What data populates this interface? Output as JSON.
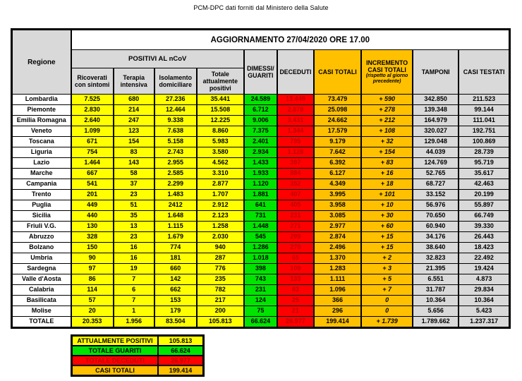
{
  "page_title": "PCM-DPC dati forniti dal Ministero della Salute",
  "colors": {
    "yellow": "#FFFF00",
    "green": "#00E400",
    "red": "#FF0000",
    "dark_red_text": "#C00000",
    "orange": "#FFC000",
    "grey": "#D9D9D9"
  },
  "table": {
    "update_header": "AGGIORNAMENTO 27/04/2020 ORE 17.00",
    "headers": {
      "regione": "Regione",
      "positivi_group": "POSITIVI AL nCoV",
      "ricoverati": "Ricoverati con sintomi",
      "terapia": "Terapia intensiva",
      "isolamento": "Isolamento domiciliare",
      "totale_positivi": "Totale attualmente positivi",
      "dimessi": "DIMESSI/ GUARITI",
      "deceduti": "DECEDUTI",
      "casi_totali": "CASI TOTALI",
      "incremento": "INCREMENTO CASI TOTALI",
      "incremento_note": "(rispetto al giorno precedente)",
      "tamponi": "TAMPONI",
      "casi_testati": "CASI TESTATI"
    },
    "rows": [
      {
        "regione": "Lombardia",
        "ricoverati": "7.525",
        "terapia": "680",
        "isolamento": "27.236",
        "totale_positivi": "35.441",
        "dimessi": "24.589",
        "deceduti": "13.449",
        "casi_totali": "73.479",
        "incremento": "+ 590",
        "tamponi": "342.850",
        "casi_testati": "211.523"
      },
      {
        "regione": "Piemonte",
        "ricoverati": "2.830",
        "terapia": "214",
        "isolamento": "12.464",
        "totale_positivi": "15.508",
        "dimessi": "6.712",
        "deceduti": "2.878",
        "casi_totali": "25.098",
        "incremento": "+ 278",
        "tamponi": "139.348",
        "casi_testati": "99.144"
      },
      {
        "regione": "Emilia Romagna",
        "ricoverati": "2.640",
        "terapia": "247",
        "isolamento": "9.338",
        "totale_positivi": "12.225",
        "dimessi": "9.006",
        "deceduti": "3.431",
        "casi_totali": "24.662",
        "incremento": "+ 212",
        "tamponi": "164.979",
        "casi_testati": "111.041"
      },
      {
        "regione": "Veneto",
        "ricoverati": "1.099",
        "terapia": "123",
        "isolamento": "7.638",
        "totale_positivi": "8.860",
        "dimessi": "7.375",
        "deceduti": "1.344",
        "casi_totali": "17.579",
        "incremento": "+ 108",
        "tamponi": "320.027",
        "casi_testati": "192.751"
      },
      {
        "regione": "Toscana",
        "ricoverati": "671",
        "terapia": "154",
        "isolamento": "5.158",
        "totale_positivi": "5.983",
        "dimessi": "2.401",
        "deceduti": "795",
        "casi_totali": "9.179",
        "incremento": "+ 32",
        "tamponi": "129.048",
        "casi_testati": "100.869"
      },
      {
        "regione": "Liguria",
        "ricoverati": "754",
        "terapia": "83",
        "isolamento": "2.743",
        "totale_positivi": "3.580",
        "dimessi": "2.934",
        "deceduti": "1.128",
        "casi_totali": "7.642",
        "incremento": "+ 154",
        "tamponi": "44.039",
        "casi_testati": "28.739"
      },
      {
        "regione": "Lazio",
        "ricoverati": "1.464",
        "terapia": "143",
        "isolamento": "2.955",
        "totale_positivi": "4.562",
        "dimessi": "1.433",
        "deceduti": "397",
        "casi_totali": "6.392",
        "incremento": "+ 83",
        "tamponi": "124.769",
        "casi_testati": "95.719"
      },
      {
        "regione": "Marche",
        "ricoverati": "667",
        "terapia": "58",
        "isolamento": "2.585",
        "totale_positivi": "3.310",
        "dimessi": "1.933",
        "deceduti": "884",
        "casi_totali": "6.127",
        "incremento": "+ 16",
        "tamponi": "52.765",
        "casi_testati": "35.617"
      },
      {
        "regione": "Campania",
        "ricoverati": "541",
        "terapia": "37",
        "isolamento": "2.299",
        "totale_positivi": "2.877",
        "dimessi": "1.120",
        "deceduti": "352",
        "casi_totali": "4.349",
        "incremento": "+ 18",
        "tamponi": "68.727",
        "casi_testati": "42.463"
      },
      {
        "regione": "Trento",
        "ricoverati": "201",
        "terapia": "23",
        "isolamento": "1.483",
        "totale_positivi": "1.707",
        "dimessi": "1.881",
        "deceduti": "407",
        "casi_totali": "3.995",
        "incremento": "+ 101",
        "tamponi": "33.152",
        "casi_testati": "20.199"
      },
      {
        "regione": "Puglia",
        "ricoverati": "449",
        "terapia": "51",
        "isolamento": "2412",
        "totale_positivi": "2.912",
        "dimessi": "641",
        "deceduti": "405",
        "casi_totali": "3.958",
        "incremento": "+ 10",
        "tamponi": "56.976",
        "casi_testati": "55.897"
      },
      {
        "regione": "Sicilia",
        "ricoverati": "440",
        "terapia": "35",
        "isolamento": "1.648",
        "totale_positivi": "2.123",
        "dimessi": "731",
        "deceduti": "231",
        "casi_totali": "3.085",
        "incremento": "+ 30",
        "tamponi": "70.650",
        "casi_testati": "66.749"
      },
      {
        "regione": "Friuli V.G.",
        "ricoverati": "130",
        "terapia": "13",
        "isolamento": "1.115",
        "totale_positivi": "1.258",
        "dimessi": "1.448",
        "deceduti": "271",
        "casi_totali": "2.977",
        "incremento": "+ 60",
        "tamponi": "60.940",
        "casi_testati": "39.330"
      },
      {
        "regione": "Abruzzo",
        "ricoverati": "328",
        "terapia": "23",
        "isolamento": "1.679",
        "totale_positivi": "2.030",
        "dimessi": "545",
        "deceduti": "299",
        "casi_totali": "2.874",
        "incremento": "+ 15",
        "tamponi": "34.176",
        "casi_testati": "26.443"
      },
      {
        "regione": "Bolzano",
        "ricoverati": "150",
        "terapia": "16",
        "isolamento": "774",
        "totale_positivi": "940",
        "dimessi": "1.286",
        "deceduti": "270",
        "casi_totali": "2.496",
        "incremento": "+ 15",
        "tamponi": "38.640",
        "casi_testati": "18.423"
      },
      {
        "regione": "Umbria",
        "ricoverati": "90",
        "terapia": "16",
        "isolamento": "181",
        "totale_positivi": "287",
        "dimessi": "1.018",
        "deceduti": "65",
        "casi_totali": "1.370",
        "incremento": "+ 2",
        "tamponi": "32.823",
        "casi_testati": "22.492"
      },
      {
        "regione": "Sardegna",
        "ricoverati": "97",
        "terapia": "19",
        "isolamento": "660",
        "totale_positivi": "776",
        "dimessi": "398",
        "deceduti": "109",
        "casi_totali": "1.283",
        "incremento": "+ 3",
        "tamponi": "21.395",
        "casi_testati": "19.424"
      },
      {
        "regione": "Valle d'Aosta",
        "ricoverati": "86",
        "terapia": "7",
        "isolamento": "142",
        "totale_positivi": "235",
        "dimessi": "743",
        "deceduti": "133",
        "casi_totali": "1.111",
        "incremento": "+ 5",
        "tamponi": "6.551",
        "casi_testati": "4.873"
      },
      {
        "regione": "Calabria",
        "ricoverati": "114",
        "terapia": "6",
        "isolamento": "662",
        "totale_positivi": "782",
        "dimessi": "231",
        "deceduti": "83",
        "casi_totali": "1.096",
        "incremento": "+ 7",
        "tamponi": "31.787",
        "casi_testati": "29.834"
      },
      {
        "regione": "Basilicata",
        "ricoverati": "57",
        "terapia": "7",
        "isolamento": "153",
        "totale_positivi": "217",
        "dimessi": "124",
        "deceduti": "25",
        "casi_totali": "366",
        "incremento": "0",
        "tamponi": "10.364",
        "casi_testati": "10.364"
      },
      {
        "regione": "Molise",
        "ricoverati": "20",
        "terapia": "1",
        "isolamento": "179",
        "totale_positivi": "200",
        "dimessi": "75",
        "deceduti": "21",
        "casi_totali": "296",
        "incremento": "0",
        "tamponi": "5.656",
        "casi_testati": "5.423"
      }
    ],
    "totale": {
      "regione": "TOTALE",
      "ricoverati": "20.353",
      "terapia": "1.956",
      "isolamento": "83.504",
      "totale_positivi": "105.813",
      "dimessi": "66.624",
      "deceduti": "26.977",
      "casi_totali": "199.414",
      "incremento": "+ 1.739",
      "tamponi": "1.789.662",
      "casi_testati": "1.237.317"
    }
  },
  "summary": {
    "rows": [
      {
        "label": "ATTUALMENTE POSITIVI",
        "value": "105.813",
        "bg": "#FFFF00",
        "fg": "#000000"
      },
      {
        "label": "TOTALE GUARITI",
        "value": "66.624",
        "bg": "#00E400",
        "fg": "#000000"
      },
      {
        "label": "TOTALE DECEDUTI",
        "value": "26.977",
        "bg": "#FF0000",
        "fg": "#C00000"
      },
      {
        "label": "CASI TOTALI",
        "value": "199.414",
        "bg": "#FFC000",
        "fg": "#000000"
      }
    ]
  }
}
